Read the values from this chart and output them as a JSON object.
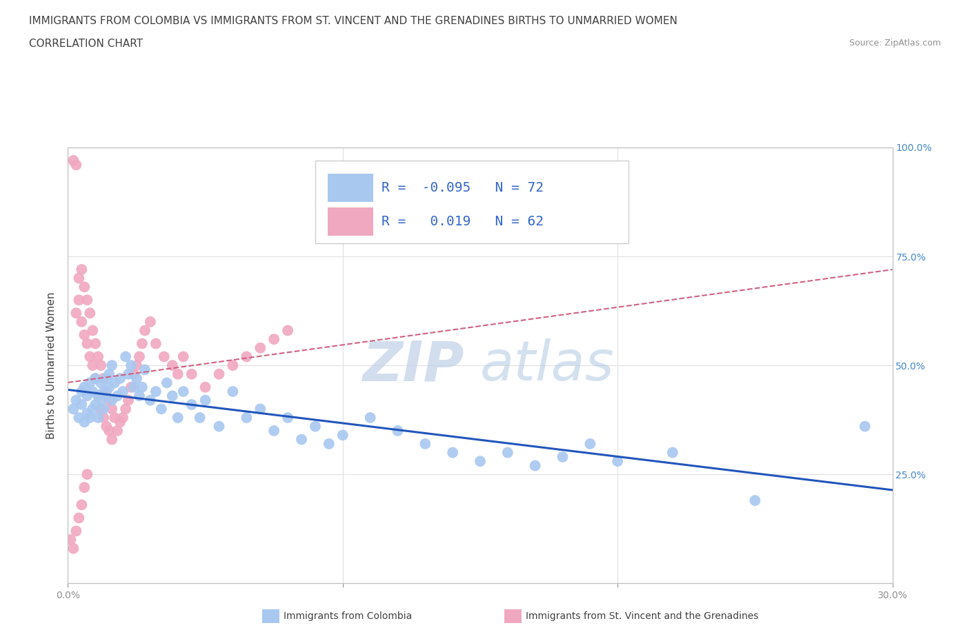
{
  "title_line1": "IMMIGRANTS FROM COLOMBIA VS IMMIGRANTS FROM ST. VINCENT AND THE GRENADINES BIRTHS TO UNMARRIED WOMEN",
  "title_line2": "CORRELATION CHART",
  "source_text": "Source: ZipAtlas.com",
  "ylabel": "Births to Unmarried Women",
  "xlim": [
    0.0,
    0.3
  ],
  "ylim": [
    0.0,
    1.0
  ],
  "xticks": [
    0.0,
    0.1,
    0.2,
    0.3
  ],
  "yticks": [
    0.0,
    0.25,
    0.5,
    0.75,
    1.0
  ],
  "xticklabels": [
    "0.0%",
    "",
    "",
    "30.0%"
  ],
  "yticklabels_right": [
    "",
    "25.0%",
    "50.0%",
    "75.0%",
    "100.0%"
  ],
  "colombia_R": -0.095,
  "colombia_N": 72,
  "stvincent_R": 0.019,
  "stvincent_N": 62,
  "colombia_color": "#a8c8f0",
  "colombia_line_color": "#2255bb",
  "stvincent_color": "#f0a8c0",
  "stvincent_line_color": "#d06080",
  "colombia_scatter_x": [
    0.002,
    0.003,
    0.004,
    0.005,
    0.005,
    0.006,
    0.006,
    0.007,
    0.007,
    0.008,
    0.008,
    0.009,
    0.009,
    0.01,
    0.01,
    0.011,
    0.011,
    0.012,
    0.012,
    0.013,
    0.013,
    0.014,
    0.014,
    0.015,
    0.015,
    0.016,
    0.016,
    0.017,
    0.018,
    0.019,
    0.02,
    0.021,
    0.022,
    0.023,
    0.024,
    0.025,
    0.026,
    0.027,
    0.028,
    0.03,
    0.032,
    0.034,
    0.036,
    0.038,
    0.04,
    0.042,
    0.045,
    0.048,
    0.05,
    0.055,
    0.06,
    0.065,
    0.07,
    0.075,
    0.08,
    0.085,
    0.09,
    0.095,
    0.1,
    0.11,
    0.12,
    0.13,
    0.14,
    0.15,
    0.16,
    0.17,
    0.18,
    0.19,
    0.2,
    0.22,
    0.25,
    0.29
  ],
  "colombia_scatter_y": [
    0.4,
    0.42,
    0.38,
    0.44,
    0.41,
    0.45,
    0.37,
    0.43,
    0.39,
    0.46,
    0.38,
    0.44,
    0.4,
    0.47,
    0.41,
    0.43,
    0.38,
    0.46,
    0.42,
    0.44,
    0.4,
    0.47,
    0.43,
    0.45,
    0.48,
    0.42,
    0.5,
    0.46,
    0.43,
    0.47,
    0.44,
    0.52,
    0.48,
    0.5,
    0.45,
    0.47,
    0.43,
    0.45,
    0.49,
    0.42,
    0.44,
    0.4,
    0.46,
    0.43,
    0.38,
    0.44,
    0.41,
    0.38,
    0.42,
    0.36,
    0.44,
    0.38,
    0.4,
    0.35,
    0.38,
    0.33,
    0.36,
    0.32,
    0.34,
    0.38,
    0.35,
    0.32,
    0.3,
    0.28,
    0.3,
    0.27,
    0.29,
    0.32,
    0.28,
    0.3,
    0.19,
    0.36
  ],
  "stvincent_scatter_x": [
    0.002,
    0.003,
    0.003,
    0.004,
    0.004,
    0.005,
    0.005,
    0.006,
    0.006,
    0.007,
    0.007,
    0.008,
    0.008,
    0.009,
    0.009,
    0.01,
    0.01,
    0.011,
    0.011,
    0.012,
    0.012,
    0.013,
    0.013,
    0.014,
    0.014,
    0.015,
    0.015,
    0.016,
    0.016,
    0.017,
    0.018,
    0.019,
    0.02,
    0.021,
    0.022,
    0.023,
    0.024,
    0.025,
    0.026,
    0.027,
    0.028,
    0.03,
    0.032,
    0.035,
    0.038,
    0.04,
    0.042,
    0.045,
    0.05,
    0.055,
    0.06,
    0.065,
    0.07,
    0.075,
    0.08,
    0.001,
    0.002,
    0.003,
    0.004,
    0.005,
    0.006,
    0.007
  ],
  "stvincent_scatter_y": [
    0.97,
    0.96,
    0.62,
    0.7,
    0.65,
    0.72,
    0.6,
    0.68,
    0.57,
    0.65,
    0.55,
    0.62,
    0.52,
    0.58,
    0.5,
    0.55,
    0.47,
    0.52,
    0.43,
    0.5,
    0.4,
    0.47,
    0.38,
    0.44,
    0.36,
    0.42,
    0.35,
    0.4,
    0.33,
    0.38,
    0.35,
    0.37,
    0.38,
    0.4,
    0.42,
    0.45,
    0.48,
    0.5,
    0.52,
    0.55,
    0.58,
    0.6,
    0.55,
    0.52,
    0.5,
    0.48,
    0.52,
    0.48,
    0.45,
    0.48,
    0.5,
    0.52,
    0.54,
    0.56,
    0.58,
    0.1,
    0.08,
    0.12,
    0.15,
    0.18,
    0.22,
    0.25
  ],
  "watermark_color": "#c8d8f0",
  "watermark_text_1": "ZIP",
  "watermark_text_2": "atlas",
  "background_color": "#ffffff",
  "grid_color": "#e0e0e0",
  "tick_color": "#909090",
  "axis_color": "#c0c0c0",
  "title_fontsize": 11,
  "subtitle_fontsize": 11,
  "legend_fontsize": 14,
  "axis_fontsize": 11
}
